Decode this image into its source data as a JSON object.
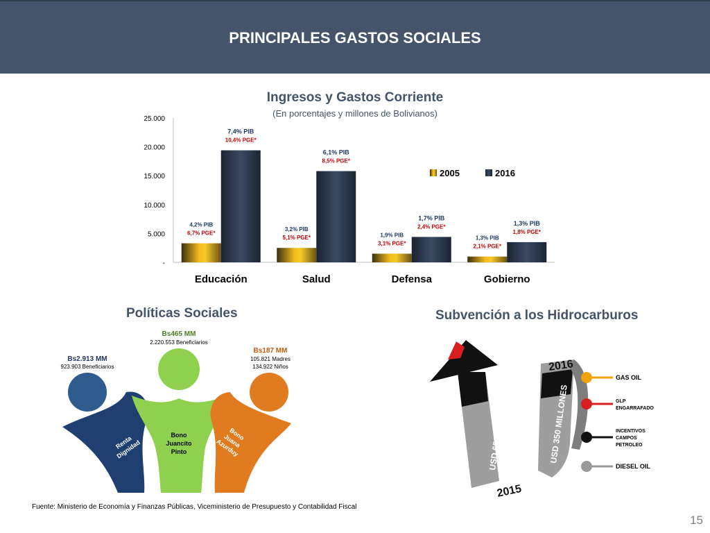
{
  "header": {
    "title": "PRINCIPALES GASTOS SOCIALES"
  },
  "chart_data": {
    "type": "bar",
    "title": "Ingresos y Gastos Corriente",
    "subtitle": "(En porcentajes y millones de Bolivianos)",
    "categories": [
      "Educación",
      "Salud",
      "Defensa",
      "Gobierno"
    ],
    "ylim": [
      0,
      25000
    ],
    "yticks": [
      "-",
      "5.000",
      "10.000",
      "15.000",
      "20.000",
      "25.000"
    ],
    "ytick_values": [
      0,
      5000,
      10000,
      15000,
      20000,
      25000
    ],
    "legend_position": "right",
    "series": [
      {
        "name": "2005",
        "values": [
          3300,
          2500,
          1500,
          1000
        ],
        "color": "#d9a422",
        "labels": [
          {
            "pib": "4,2% PIB",
            "pge": "6,7% PGE*"
          },
          {
            "pib": "3,2% PIB",
            "pge": "5,1% PGE*"
          },
          {
            "pib": "1,9% PIB",
            "pge": "3,1% PGE*"
          },
          {
            "pib": "1,3% PIB",
            "pge": "2,1% PGE*"
          }
        ]
      },
      {
        "name": "2016",
        "values": [
          19400,
          15800,
          4400,
          3500
        ],
        "color": "#2e3b4e",
        "labels": [
          {
            "pib": "7,4% PIB",
            "pge": "10,4% PGE*"
          },
          {
            "pib": "6,1% PIB",
            "pge": "8,5% PGE*"
          },
          {
            "pib": "1,7% PIB",
            "pge": "2,4% PGE*"
          },
          {
            "pib": "1,3% PIB",
            "pge": "1,8% PGE*"
          }
        ]
      }
    ],
    "label_colors": {
      "pib": "#1f3864",
      "pge": "#c00000"
    }
  },
  "policies": {
    "title": "Políticas Sociales",
    "items": [
      {
        "amount": "Bs2.913 MM",
        "detail": "923.903 Beneficiarios",
        "name": "Renta Dignidad",
        "color": "#2e5c8f",
        "amount_color": "#1f3864"
      },
      {
        "amount": "Bs465 MM",
        "detail": "2.220.553 Beneficiarios",
        "name": "Bono Juancito Pinto",
        "color": "#8fd14f",
        "amount_color": "#4e7a2a"
      },
      {
        "amount": "Bs187 MM",
        "detail": "105.821 Madres",
        "detail2": "134.922 Niños",
        "name": "Bono Juana Azurduy",
        "color": "#e07b20",
        "amount_color": "#c55a11"
      }
    ]
  },
  "subsidy": {
    "title": "Subvención a los Hidrocarburos",
    "up_arrow_label": "USD 658 MILLONES",
    "down_arrow_label": "USD 350 MILLONES",
    "year_start": "2015",
    "year_end": "2016",
    "items": [
      {
        "label": "GAS OIL",
        "color": "#f0a30a"
      },
      {
        "label": "GLP ENGARRAFADO",
        "color": "#d81e1e"
      },
      {
        "label": "INCENTIVOS CAMPOS PETROLEO",
        "color": "#111111"
      },
      {
        "label": "DIESEL OIL",
        "color": "#9a9a9a"
      }
    ]
  },
  "footer": {
    "source": "Fuente: Ministerio de Economía y Finanzas Públicas, Viceministerio de Presupuesto y Contabilidad Fiscal",
    "page_number": "15"
  }
}
